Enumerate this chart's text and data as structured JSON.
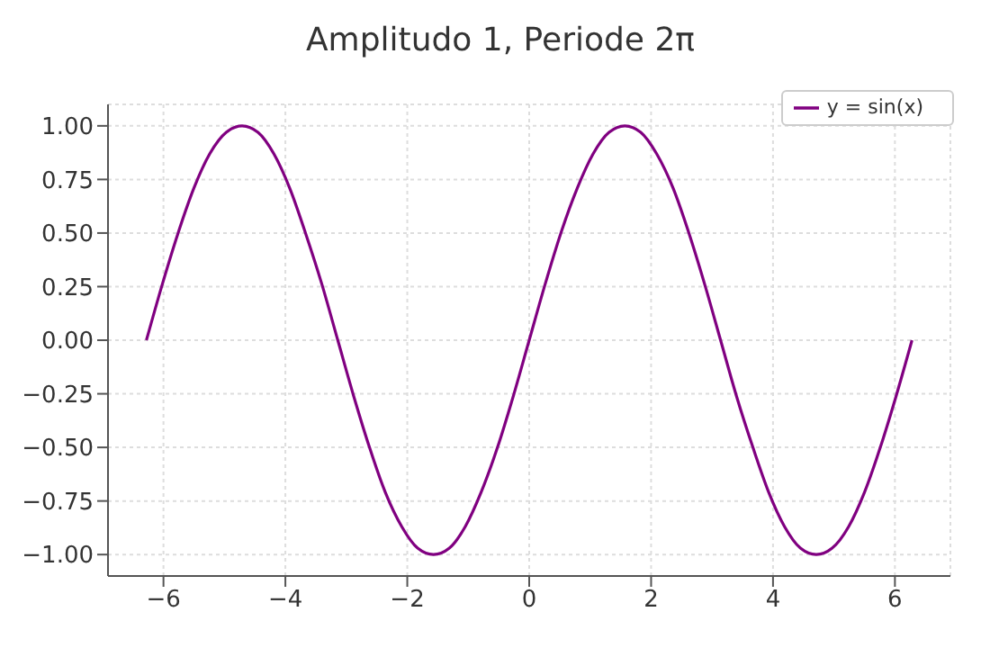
{
  "chart_data": {
    "type": "line",
    "title": "Amplitudo 1, Periode 2π",
    "x": [
      -6.28,
      -6.02,
      -5.76,
      -5.5,
      -5.24,
      -4.97,
      -4.71,
      -4.45,
      -4.19,
      -3.93,
      -3.67,
      -3.4,
      -3.14,
      -2.88,
      -2.62,
      -2.36,
      -2.09,
      -1.83,
      -1.57,
      -1.31,
      -1.05,
      -0.79,
      -0.52,
      -0.26,
      0,
      0.26,
      0.52,
      0.79,
      1.05,
      1.31,
      1.57,
      1.83,
      2.09,
      2.36,
      2.62,
      2.88,
      3.14,
      3.4,
      3.67,
      3.93,
      4.19,
      4.45,
      4.71,
      4.97,
      5.24,
      5.5,
      5.76,
      6.02,
      6.28
    ],
    "series": [
      {
        "name": "y = sin(x)",
        "color": "#800080",
        "values": [
          0,
          0.26,
          0.5,
          0.71,
          0.87,
          0.97,
          1,
          0.97,
          0.87,
          0.71,
          0.5,
          0.26,
          0,
          -0.26,
          -0.5,
          -0.71,
          -0.87,
          -0.97,
          -1,
          -0.97,
          -0.87,
          -0.71,
          -0.5,
          -0.26,
          0,
          0.26,
          0.5,
          0.71,
          0.87,
          0.97,
          1,
          0.97,
          0.87,
          0.71,
          0.5,
          0.26,
          0,
          -0.26,
          -0.5,
          -0.71,
          -0.87,
          -0.97,
          -1,
          -0.97,
          -0.87,
          -0.71,
          -0.5,
          -0.26,
          0
        ]
      }
    ],
    "xlim": [
      -6.91,
      6.91
    ],
    "xticks": [
      {
        "value": -6,
        "label": "−6"
      },
      {
        "value": -4,
        "label": "−4"
      },
      {
        "value": -2,
        "label": "−2"
      },
      0,
      2,
      4,
      6
    ],
    "ylim": [
      -1.1,
      1.1
    ],
    "yticks": [
      {
        "value": -1,
        "label": "−1.00"
      },
      {
        "value": -0.75,
        "label": "−0.75"
      },
      {
        "value": -0.5,
        "label": "−0.50"
      },
      {
        "value": -0.25,
        "label": "−0.25"
      },
      {
        "value": 0,
        "label": "0.00"
      },
      {
        "value": 0.25,
        "label": "0.25"
      },
      {
        "value": 0.5,
        "label": "0.50"
      },
      {
        "value": 0.75,
        "label": "0.75"
      },
      {
        "value": 1,
        "label": "1.00"
      }
    ],
    "grid": true,
    "legend": "top right",
    "marker": "none",
    "line_style": "solid"
  }
}
